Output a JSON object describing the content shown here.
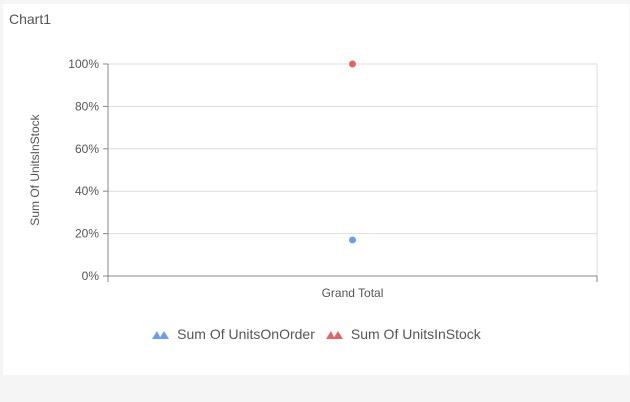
{
  "window": {
    "title": "Chart1"
  },
  "colors": {
    "series1": "#6d9eeb",
    "series2": "#e06666",
    "grid": "#dddddd",
    "axis": "#888888",
    "text": "#555555"
  },
  "chart_data": {
    "type": "scatter",
    "title": "",
    "xlabel": "",
    "ylabel": "Sum Of UnitsInStock",
    "categories": [
      "Grand Total"
    ],
    "ylim": [
      0,
      100
    ],
    "y_ticks": [
      "0%",
      "20%",
      "40%",
      "60%",
      "80%",
      "100%"
    ],
    "grid": true,
    "legend_position": "bottom",
    "series": [
      {
        "name": "Sum Of UnitsOnOrder",
        "values": [
          17
        ],
        "color": "#6d9eeb",
        "marker": "circle"
      },
      {
        "name": "Sum Of UnitsInStock",
        "values": [
          100
        ],
        "color": "#e06666",
        "marker": "circle"
      }
    ]
  }
}
